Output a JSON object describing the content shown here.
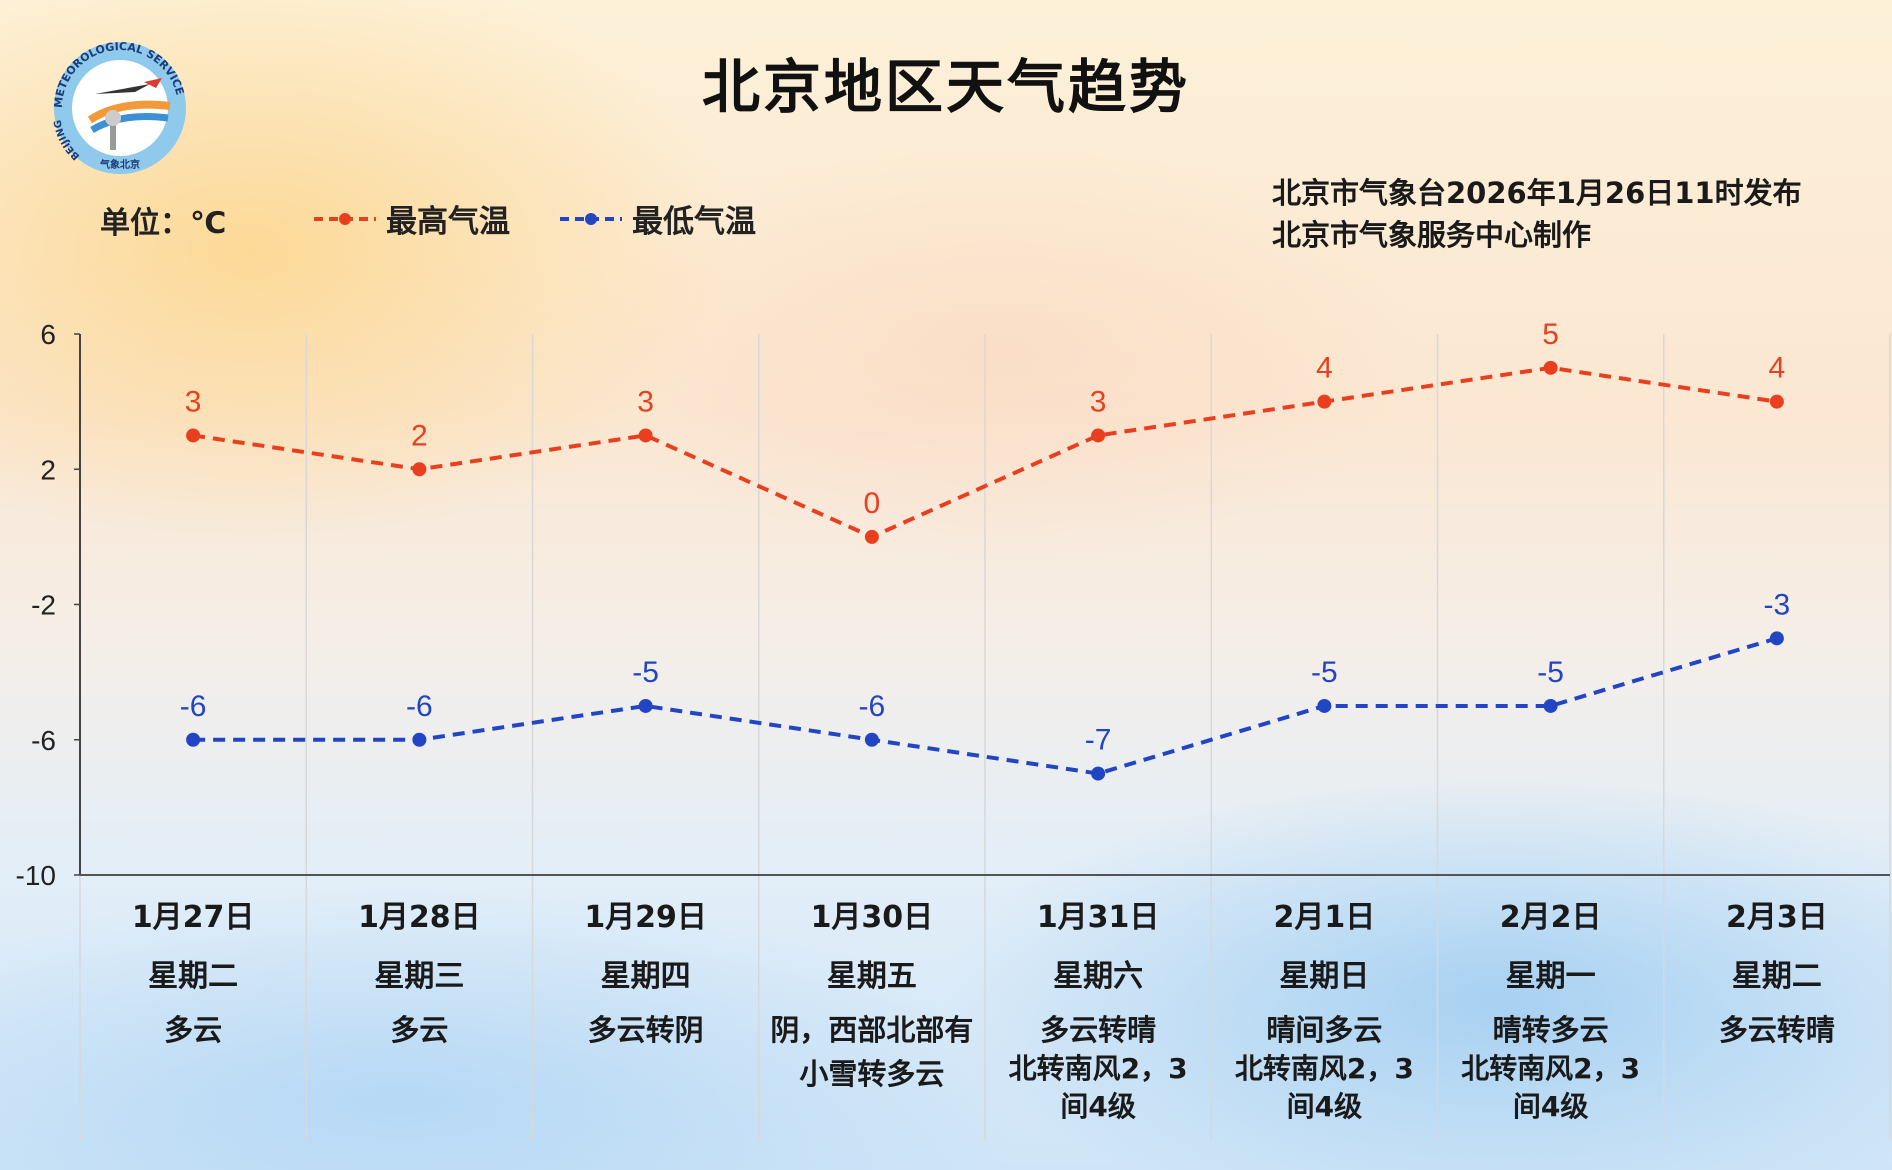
{
  "title": "北京地区天气趋势",
  "unit_label": "单位：℃",
  "issuer_lines": [
    "北京市气象台2026年1月26日11时发布",
    "北京市气象服务中心制作"
  ],
  "logo": {
    "ring_text": "METEOROLOGICAL SERVICE",
    "left_text": "BEIJING",
    "bottom_text": "气象北京"
  },
  "colors": {
    "high": "#e8401f",
    "low": "#2245c4"
  },
  "chart_data": {
    "type": "line",
    "title": "北京地区天气趋势",
    "ylabel": "单位：℃",
    "ylim": [
      -10,
      6
    ],
    "yticks": [
      6,
      2,
      -2,
      -6,
      -10
    ],
    "categories": [
      "1月27日",
      "1月28日",
      "1月29日",
      "1月30日",
      "1月31日",
      "2月1日",
      "2月2日",
      "2月3日"
    ],
    "legend_position": "top-left",
    "series": [
      {
        "name": "最高气温",
        "values": [
          3,
          2,
          3,
          0,
          3,
          4,
          5,
          4
        ],
        "color": "#e8401f"
      },
      {
        "name": "最低气温",
        "values": [
          -6,
          -6,
          -5,
          -6,
          -7,
          -5,
          -5,
          -3
        ],
        "color": "#2245c4"
      }
    ]
  },
  "days": [
    {
      "date": "1月27日",
      "weekday": "星期二",
      "condition": [
        "多云"
      ],
      "wind": []
    },
    {
      "date": "1月28日",
      "weekday": "星期三",
      "condition": [
        "多云"
      ],
      "wind": []
    },
    {
      "date": "1月29日",
      "weekday": "星期四",
      "condition": [
        "多云转阴"
      ],
      "wind": []
    },
    {
      "date": "1月30日",
      "weekday": "星期五",
      "condition": [
        "阴，西部北部有",
        "小雪转多云"
      ],
      "wind": []
    },
    {
      "date": "1月31日",
      "weekday": "星期六",
      "condition": [
        "多云转晴"
      ],
      "wind": [
        "北转南风2，3",
        "间4级"
      ]
    },
    {
      "date": "2月1日",
      "weekday": "星期日",
      "condition": [
        "晴间多云"
      ],
      "wind": [
        "北转南风2，3",
        "间4级"
      ]
    },
    {
      "date": "2月2日",
      "weekday": "星期一",
      "condition": [
        "晴转多云"
      ],
      "wind": [
        "北转南风2，3",
        "间4级"
      ]
    },
    {
      "date": "2月3日",
      "weekday": "星期二",
      "condition": [
        "多云转晴"
      ],
      "wind": []
    }
  ]
}
